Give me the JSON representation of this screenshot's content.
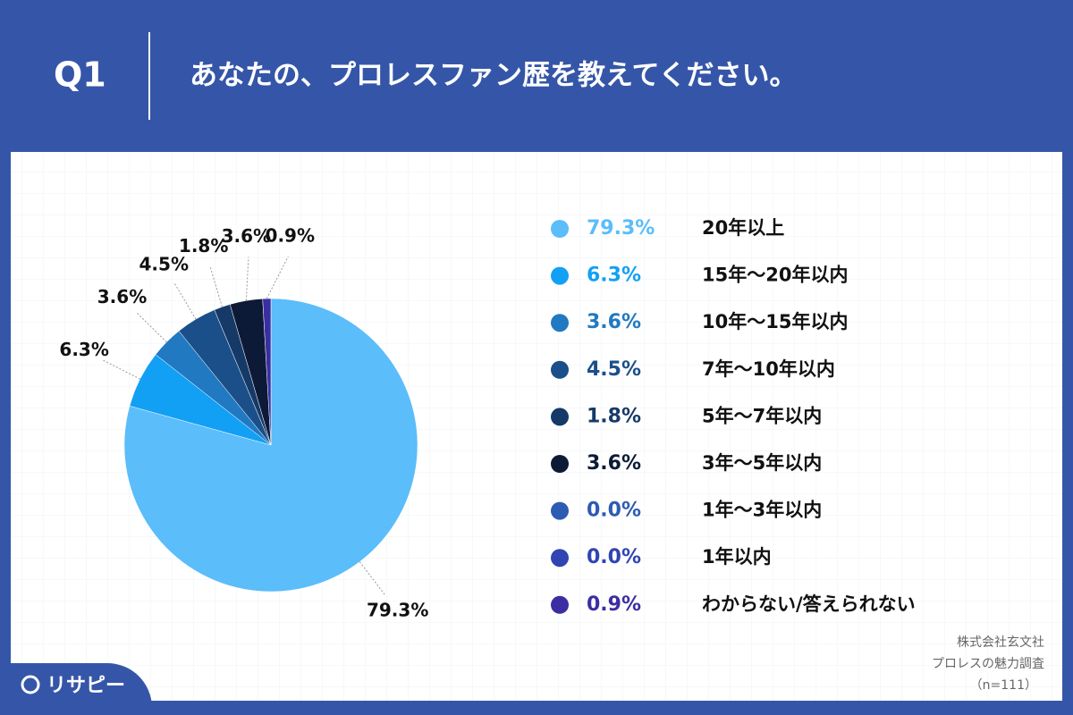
{
  "badge": "Q1",
  "logo": "リサピー",
  "source": [
    "株式会社玄文社",
    "プロレスの魅力調査",
    "（n=111）"
  ],
  "chart_data": {
    "type": "pie",
    "title": "あなたの、プロレスファン歴を教えてください。",
    "categories": [
      "20年以上",
      "15年〜20年以内",
      "10年〜15年以内",
      "7年〜10年以内",
      "5年〜7年以内",
      "3年〜5年以内",
      "1年〜3年以内",
      "1年以内",
      "わからない/答えられない"
    ],
    "values": [
      79.3,
      6.3,
      3.6,
      4.5,
      1.8,
      3.6,
      0.0,
      0.0,
      0.9
    ],
    "value_labels": [
      "79.3%",
      "6.3%",
      "3.6%",
      "4.5%",
      "1.8%",
      "3.6%",
      "0.0%",
      "0.0%",
      "0.9%"
    ],
    "colors": [
      "#5bbdfa",
      "#12a0f5",
      "#2179c2",
      "#1a4f89",
      "#163a68",
      "#0d1a37",
      "#2d5bb3",
      "#3044b2",
      "#3b2ea3"
    ]
  }
}
